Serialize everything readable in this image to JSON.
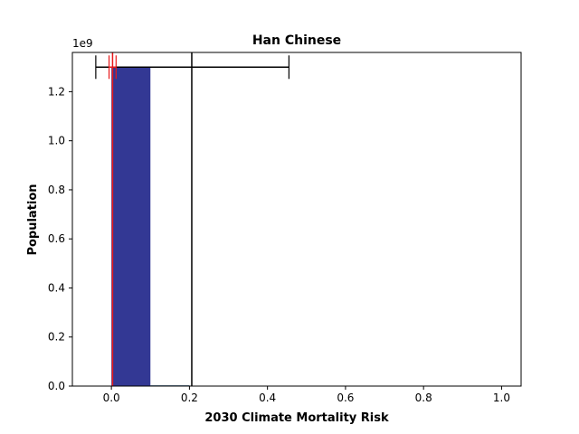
{
  "chart_data": {
    "type": "bar",
    "title": "Han Chinese",
    "xlabel": "2030 Climate Mortality Risk",
    "ylabel": "Population",
    "y_offset_label": "1e9",
    "xlim": [
      -0.1,
      1.05
    ],
    "ylim": [
      0,
      1.36
    ],
    "x_ticks": [
      0.0,
      0.2,
      0.4,
      0.6,
      0.8,
      1.0
    ],
    "x_tick_labels": [
      "0.0",
      "0.2",
      "0.4",
      "0.6",
      "0.8",
      "1.0"
    ],
    "y_ticks": [
      0.0,
      0.2,
      0.4,
      0.6,
      0.8,
      1.0,
      1.2
    ],
    "y_tick_labels": [
      "0.0",
      "0.2",
      "0.4",
      "0.6",
      "0.8",
      "1.0",
      "1.2"
    ],
    "bars": [
      {
        "x0": 0.0,
        "x1": 0.1,
        "value": 1.3,
        "color": "#333894"
      },
      {
        "x0": 0.1,
        "x1": 0.2,
        "value": 0.003,
        "color": "#1f4e79"
      }
    ],
    "red_lines": {
      "color": "#e8191b",
      "x_values": [
        0.003
      ]
    },
    "red_errorbar": {
      "color": "#e8191b",
      "y": 1.3,
      "center": 0.003,
      "lower": -0.006,
      "upper": 0.012
    },
    "black_line": {
      "color": "#000000",
      "x": 0.206
    },
    "black_errorbar": {
      "color": "#000000",
      "y": 1.3,
      "center": 0.206,
      "lower": -0.04,
      "upper": 0.455
    },
    "grid": false,
    "legend": "none"
  }
}
